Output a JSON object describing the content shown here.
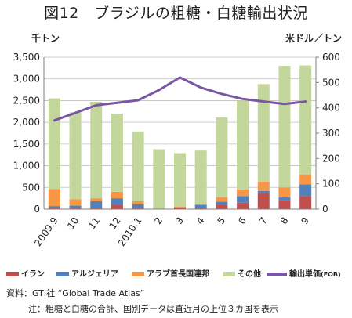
{
  "header": {
    "title": "図12　ブラジルの粗糖・白糖輸出状況",
    "unit_left": "千トン",
    "unit_right": "米ドル／トン"
  },
  "legend": {
    "iran": "イラン",
    "algeria": "アルジェリア",
    "uae_main": "アラブ首長国連邦",
    "other": "その他",
    "price_main": "輸出単価",
    "price_suffix": "(FOB)"
  },
  "footer": {
    "source": "資料：GTI社 “Global Trade Atlas”",
    "note": "注：粗糖と白糖の合計、国別データは直近月の上位３カ国を表示"
  },
  "colors": {
    "iran": "#c0504d",
    "algeria": "#4f81bd",
    "uae": "#f79646",
    "other": "#c3d69b",
    "price": "#7a55a5"
  },
  "chart_data": {
    "type": "bar",
    "stacked": true,
    "title": "図12　ブラジルの粗糖・白糖輸出状況",
    "categories": [
      "2009.9",
      "10",
      "11",
      "12",
      "2010.1",
      "2",
      "3",
      "4",
      "5",
      "6",
      "7",
      "8",
      "9"
    ],
    "ylabel_left": "千トン",
    "ylabel_right": "米ドル／トン",
    "ylim_left": [
      0,
      3500
    ],
    "yticks_left": [
      "0",
      "500",
      "1,000",
      "1,500",
      "2,000",
      "2,500",
      "3,000",
      "3,500"
    ],
    "ylim_right": [
      0,
      600
    ],
    "yticks_right": [
      "0",
      "100",
      "200",
      "300",
      "400",
      "500",
      "600"
    ],
    "series": [
      {
        "name": "イラン",
        "axis": "left",
        "values": [
          30,
          20,
          30,
          100,
          30,
          0,
          40,
          30,
          100,
          150,
          370,
          200,
          300
        ]
      },
      {
        "name": "アルジェリア",
        "axis": "left",
        "values": [
          40,
          60,
          150,
          150,
          80,
          0,
          0,
          70,
          70,
          150,
          50,
          70,
          270
        ]
      },
      {
        "name": "アラブ首長国連邦",
        "axis": "left",
        "values": [
          390,
          150,
          70,
          150,
          70,
          0,
          20,
          0,
          100,
          150,
          210,
          230,
          230
        ]
      },
      {
        "name": "その他",
        "axis": "left",
        "values": [
          2090,
          2000,
          2220,
          1800,
          1610,
          1380,
          1230,
          1250,
          1840,
          2050,
          2250,
          2800,
          2510
        ]
      },
      {
        "name": "輸出単価(FOB)",
        "type": "line",
        "axis": "right",
        "values": [
          350,
          380,
          410,
          420,
          430,
          470,
          520,
          480,
          455,
          435,
          425,
          415,
          425
        ]
      }
    ],
    "grid": true,
    "legend_position": "bottom"
  }
}
